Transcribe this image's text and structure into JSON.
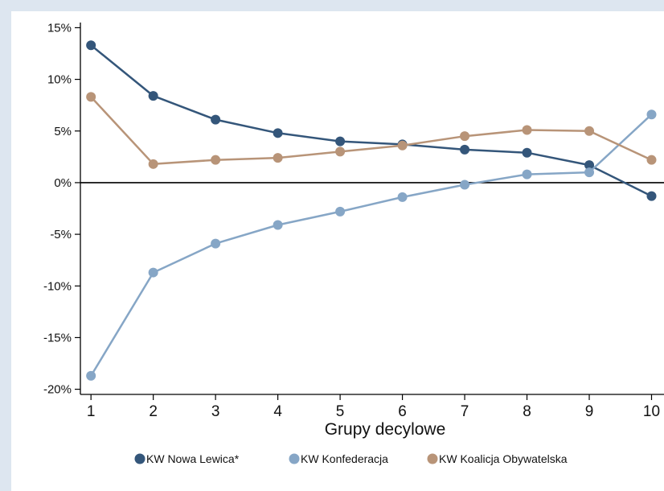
{
  "header": {
    "fragment": ""
  },
  "chart_data": {
    "type": "line",
    "title": "",
    "xlabel": "Grupy decylowe",
    "ylabel": "",
    "x": [
      1,
      2,
      3,
      4,
      5,
      6,
      7,
      8,
      9,
      10
    ],
    "xlim": [
      0.83,
      10.2
    ],
    "ylim": [
      -20.5,
      15.5
    ],
    "y_ticks": [
      15,
      10,
      5,
      0,
      -5,
      -10,
      -15,
      -20
    ],
    "y_tick_labels": [
      "15%",
      "10%",
      "5%",
      "0%",
      "-5%",
      "-10%",
      "-15%",
      "-20%"
    ],
    "x_tick_labels": [
      "1",
      "2",
      "3",
      "4",
      "5",
      "6",
      "7",
      "8",
      "9",
      "10"
    ],
    "zero_line": true,
    "grid": false,
    "legend_position": "bottom",
    "series": [
      {
        "name": "KW Nowa Lewica*",
        "color": "#34567a",
        "values": [
          13.3,
          8.4,
          6.1,
          4.8,
          4.0,
          3.7,
          3.2,
          2.9,
          1.7,
          -1.3
        ]
      },
      {
        "name": "KW Konfederacja",
        "color": "#86a6c6",
        "values": [
          -18.7,
          -8.7,
          -5.9,
          -4.1,
          -2.8,
          -1.4,
          -0.2,
          0.8,
          1.0,
          6.6
        ]
      },
      {
        "name": "KW Koalicja Obywatelska",
        "color": "#b89478",
        "values": [
          8.3,
          1.8,
          2.2,
          2.4,
          3.0,
          3.6,
          4.5,
          5.1,
          5.0,
          2.2
        ]
      }
    ]
  }
}
